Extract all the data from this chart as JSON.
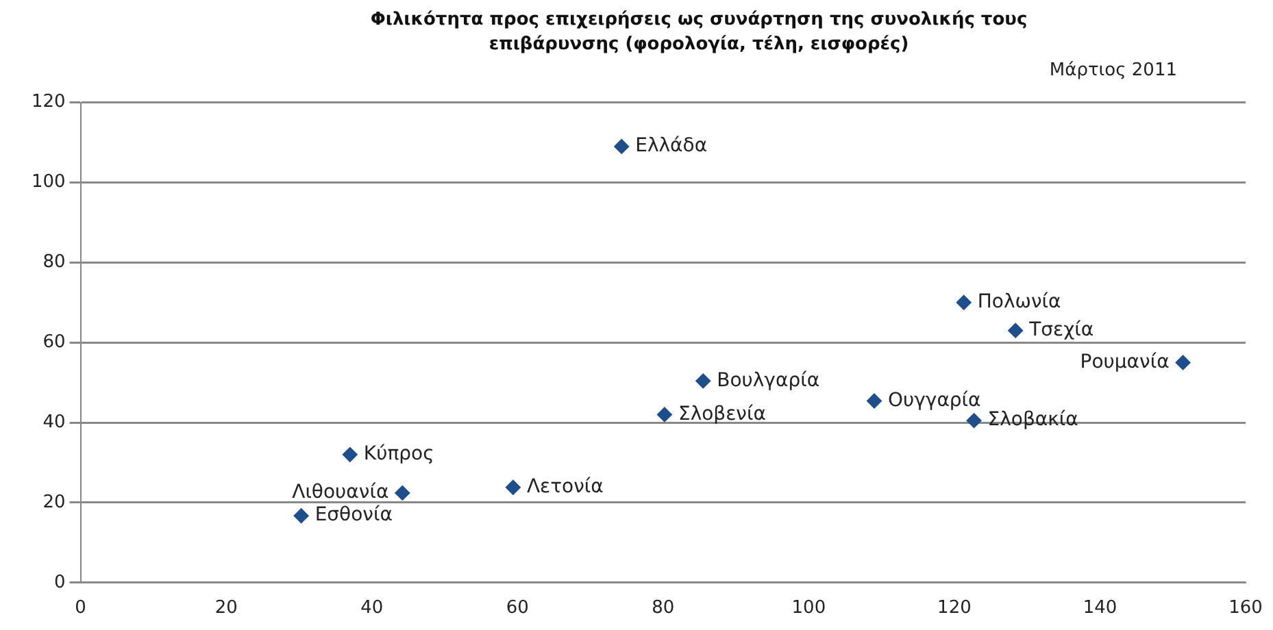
{
  "chart_data": {
    "type": "scatter",
    "title": "Φιλικότητα προς επιχειρήσεις ως συνάρτηση της συνολικής τους επιβάρυνσης (φορολογία, τέλη, εισφορές)",
    "subtitle": "Μάρτιος 2011",
    "series": [
      {
        "color": "#1f4e8c",
        "x": [
          74.3,
          121.3,
          128.4,
          151.4,
          85.5,
          80.2,
          109,
          122.7,
          37,
          44.2,
          59.4,
          30.3
        ],
        "values": [
          109,
          70,
          63,
          55,
          50.4,
          42,
          45.4,
          40.5,
          32,
          22.4,
          23.8,
          16.7
        ]
      }
    ],
    "annotations": [
      {
        "text": "Ελλάδα",
        "x": 74.3,
        "y": 109
      },
      {
        "text": "Πολωνία",
        "x": 121.3,
        "y": 70
      },
      {
        "text": "Τσεχία",
        "x": 128.4,
        "y": 63
      },
      {
        "text": "Ρουμανία",
        "x": 151.4,
        "y": 55
      },
      {
        "text": "Βουλγαρία",
        "x": 85.5,
        "y": 50.4
      },
      {
        "text": "Σλοβενία",
        "x": 80.2,
        "y": 42
      },
      {
        "text": "Ουγγαρία",
        "x": 109,
        "y": 45.4
      },
      {
        "text": "Σλοβακία",
        "x": 122.7,
        "y": 40.5
      },
      {
        "text": "Κύπρος",
        "x": 37,
        "y": 32
      },
      {
        "text": "Λιθουανία",
        "x": 44.2,
        "y": 22.4
      },
      {
        "text": "Λετονία",
        "x": 59.4,
        "y": 23.8
      },
      {
        "text": "Εσθονία",
        "x": 30.3,
        "y": 16.7
      }
    ],
    "xlim": [
      0,
      160
    ],
    "xticks": [
      0,
      20,
      40,
      60,
      80,
      100,
      120,
      140,
      160
    ],
    "ylim": [
      0,
      120
    ],
    "yticks": [
      0,
      20,
      40,
      60,
      80,
      100,
      120
    ],
    "grid": "y",
    "marker": "diamond",
    "legend": false
  }
}
